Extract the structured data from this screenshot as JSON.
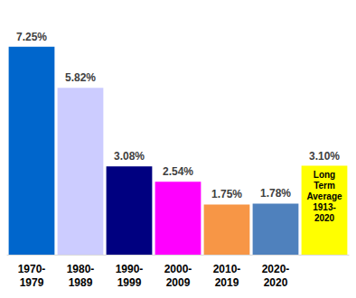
{
  "chart_data": {
    "type": "bar",
    "categories": [
      "1970-1979",
      "1980-1989",
      "1990-1999",
      "2000-2009",
      "2010-2019",
      "2020-2020",
      null
    ],
    "values": [
      7.25,
      5.82,
      3.08,
      2.54,
      1.75,
      1.78,
      3.1
    ],
    "value_labels": [
      "7.25%",
      "5.82%",
      "3.08%",
      "2.54%",
      "1.75%",
      "1.78%",
      "3.10%"
    ],
    "inner_labels": [
      null,
      null,
      null,
      null,
      null,
      null,
      "Long Term Average 1913-2020"
    ],
    "colors": [
      "#0066cc",
      "#ccccff",
      "#000080",
      "#ff00ff",
      "#f79646",
      "#4f81bd",
      "#ffff00"
    ],
    "ylim": [
      0,
      8
    ],
    "yticks": [
      0,
      8
    ],
    "grid": false,
    "data_labels": true,
    "tick_labels": "x"
  }
}
